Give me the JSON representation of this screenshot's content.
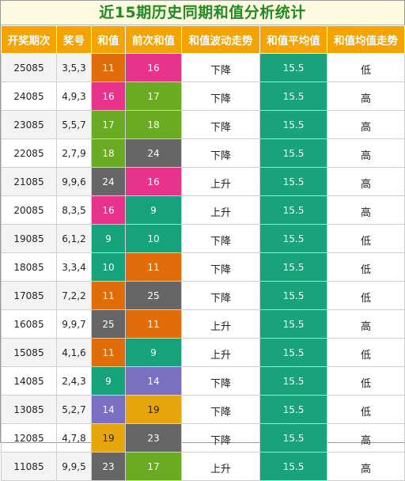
{
  "title": "近15期历史同期和值分析统计",
  "headers": [
    "开奖期次",
    "奖号",
    "和值",
    "前次和值",
    "和值波动走势",
    "和值平均值",
    "和值均值走势"
  ],
  "colors": {
    "header_bg": "#f5a300",
    "title_color": "#1f8b22",
    "avg_bg": "#1aa37a",
    "sum_colors": {
      "9": "#16a37b",
      "10": "#16a37b",
      "11": "#e06c0a",
      "14": "#7b6fc2",
      "16": "#e8338c",
      "17": "#6aab23",
      "18": "#6aab23",
      "19": "#e5a50b",
      "23": "#666666",
      "24": "#666666",
      "25": "#666666"
    }
  },
  "rows": [
    {
      "period": "25085",
      "numbers": "3,5,3",
      "sum": "11",
      "prev_sum": "16",
      "trend": "下降",
      "avg": "15.5",
      "avg_trend": "低"
    },
    {
      "period": "24085",
      "numbers": "4,9,3",
      "sum": "16",
      "prev_sum": "17",
      "trend": "下降",
      "avg": "15.5",
      "avg_trend": "高"
    },
    {
      "period": "23085",
      "numbers": "5,5,7",
      "sum": "17",
      "prev_sum": "18",
      "trend": "下降",
      "avg": "15.5",
      "avg_trend": "高"
    },
    {
      "period": "22085",
      "numbers": "2,7,9",
      "sum": "18",
      "prev_sum": "24",
      "trend": "下降",
      "avg": "15.5",
      "avg_trend": "高"
    },
    {
      "period": "21085",
      "numbers": "9,9,6",
      "sum": "24",
      "prev_sum": "16",
      "trend": "上升",
      "avg": "15.5",
      "avg_trend": "高"
    },
    {
      "period": "20085",
      "numbers": "8,3,5",
      "sum": "16",
      "prev_sum": "9",
      "trend": "上升",
      "avg": "15.5",
      "avg_trend": "高"
    },
    {
      "period": "19085",
      "numbers": "6,1,2",
      "sum": "9",
      "prev_sum": "10",
      "trend": "下降",
      "avg": "15.5",
      "avg_trend": "低"
    },
    {
      "period": "18085",
      "numbers": "3,3,4",
      "sum": "10",
      "prev_sum": "11",
      "trend": "下降",
      "avg": "15.5",
      "avg_trend": "低"
    },
    {
      "period": "17085",
      "numbers": "7,2,2",
      "sum": "11",
      "prev_sum": "25",
      "trend": "下降",
      "avg": "15.5",
      "avg_trend": "低"
    },
    {
      "period": "16085",
      "numbers": "9,9,7",
      "sum": "25",
      "prev_sum": "11",
      "trend": "上升",
      "avg": "15.5",
      "avg_trend": "高"
    },
    {
      "period": "15085",
      "numbers": "4,1,6",
      "sum": "11",
      "prev_sum": "9",
      "trend": "上升",
      "avg": "15.5",
      "avg_trend": "低"
    },
    {
      "period": "14085",
      "numbers": "2,4,3",
      "sum": "9",
      "prev_sum": "14",
      "trend": "下降",
      "avg": "15.5",
      "avg_trend": "低"
    },
    {
      "period": "13085",
      "numbers": "5,2,7",
      "sum": "14",
      "prev_sum": "19",
      "trend": "下降",
      "avg": "15.5",
      "avg_trend": "低"
    },
    {
      "period": "12085",
      "numbers": "4,7,8",
      "sum": "19",
      "prev_sum": "23",
      "trend": "下降",
      "avg": "15.5",
      "avg_trend": "高"
    },
    {
      "period": "11085",
      "numbers": "9,9,5",
      "sum": "23",
      "prev_sum": "17",
      "trend": "上升",
      "avg": "15.5",
      "avg_trend": "高"
    }
  ]
}
